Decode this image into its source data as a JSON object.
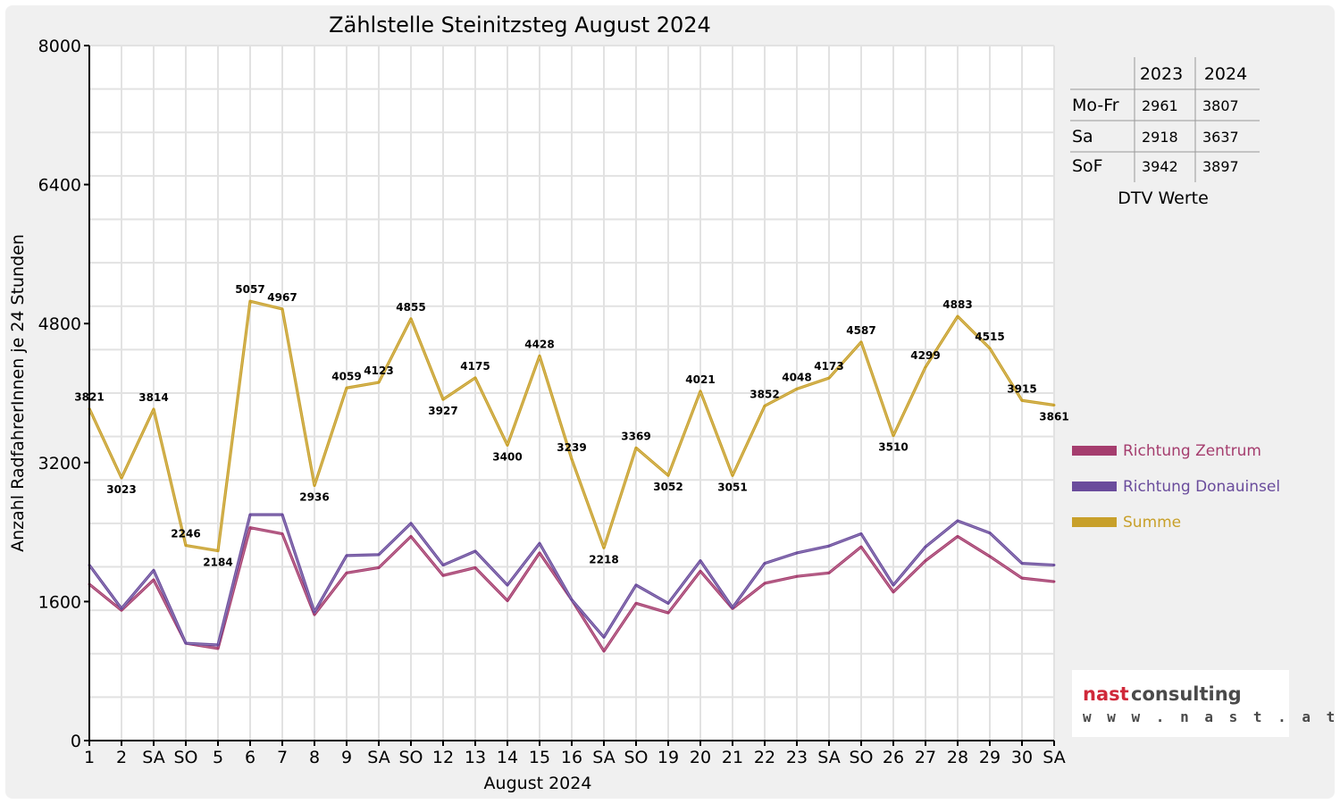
{
  "chart_data": {
    "type": "line",
    "title": "Zählstelle Steinitzsteg August 2024",
    "xlabel": "August 2024",
    "ylabel": "Anzahl RadfahrerInnen je 24 Stunden",
    "ylim": [
      0,
      8000
    ],
    "yticks": [
      "0",
      "1600",
      "3200",
      "4800",
      "6400",
      "8000"
    ],
    "grid": true,
    "legend_position": "right",
    "categories": [
      "1",
      "2",
      "SA",
      "SO",
      "5",
      "6",
      "7",
      "8",
      "9",
      "SA",
      "SO",
      "12",
      "13",
      "14",
      "15",
      "16",
      "SA",
      "SO",
      "19",
      "20",
      "21",
      "22",
      "23",
      "SA",
      "SO",
      "26",
      "27",
      "28",
      "29",
      "30",
      "SA"
    ],
    "highlighted_categories": [
      3,
      10,
      14,
      17,
      24
    ],
    "highlight_color": "#ff0000",
    "series": [
      {
        "name": "Richtung Zentrum",
        "color": "#a53d6e",
        "values": [
          1800,
          1500,
          1850,
          1120,
          1060,
          2450,
          2380,
          1450,
          1930,
          1990,
          2350,
          1900,
          1990,
          1610,
          2160,
          1620,
          1030,
          1580,
          1470,
          1950,
          1520,
          1810,
          1890,
          1930,
          2230,
          1710,
          2070,
          2350,
          2120,
          1870,
          1830
        ]
      },
      {
        "name": "Richtung Donauinsel",
        "color": "#6a4c9c",
        "values": [
          2020,
          1520,
          1960,
          1120,
          1100,
          2600,
          2600,
          1480,
          2130,
          2140,
          2500,
          2020,
          2180,
          1790,
          2270,
          1620,
          1190,
          1790,
          1580,
          2070,
          1530,
          2040,
          2160,
          2240,
          2380,
          1790,
          2230,
          2530,
          2390,
          2040,
          2020
        ]
      },
      {
        "name": "Summe",
        "color": "#c8a02a",
        "values": [
          3821,
          3023,
          3814,
          2246,
          2184,
          5057,
          4967,
          2936,
          4059,
          4123,
          4855,
          3927,
          4175,
          3400,
          4428,
          3239,
          2218,
          3369,
          3052,
          4021,
          3051,
          3852,
          4048,
          4173,
          4587,
          3510,
          4299,
          4883,
          4515,
          3915,
          3861
        ]
      }
    ],
    "data_labels": [
      "3821",
      "3023",
      "3814",
      "2246",
      "2184",
      "5057",
      "4967",
      "2936",
      "4059",
      "4123",
      "4855",
      "3927",
      "4175",
      "3400",
      "4428",
      "3239",
      "2218",
      "3369",
      "3052",
      "4021",
      "3051",
      "3852",
      "4048",
      "4173",
      "4587",
      "3510",
      "4299",
      "4883",
      "4515",
      "3915",
      "3861"
    ]
  },
  "dtv_table": {
    "caption": "DTV Werte",
    "columns": [
      "2023",
      "2024"
    ],
    "rows": [
      {
        "label": "Mo-Fr",
        "v2023": "2961",
        "v2024": "3807"
      },
      {
        "label": "Sa",
        "v2023": "2918",
        "v2024": "3637"
      },
      {
        "label": "SoF",
        "v2023": "3942",
        "v2024": "3897"
      }
    ]
  },
  "logo": {
    "brand_part1": "nast",
    "brand_part2": "consulting",
    "url": "w w w . n a s t . a t"
  }
}
